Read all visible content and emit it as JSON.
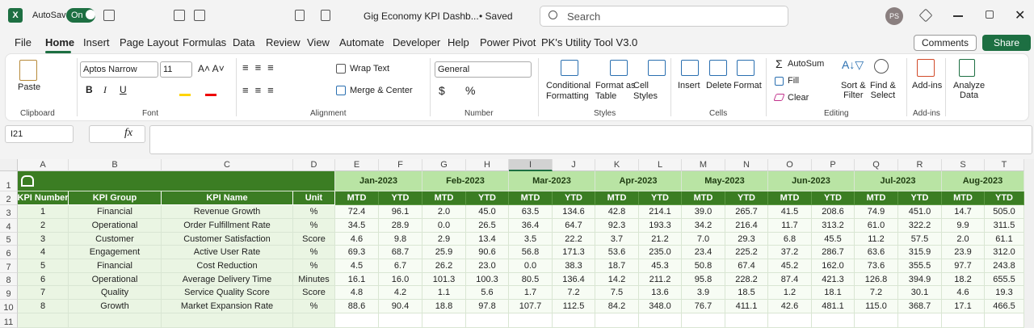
{
  "titlebar": {
    "autosave": "AutoSave",
    "toggle": "On",
    "filename": "Gig Economy KPI Dashb...",
    "status": "• Saved",
    "search": "Search",
    "avatar": "PS"
  },
  "menu": {
    "tabs": [
      "File",
      "Home",
      "Insert",
      "Page Layout",
      "Formulas",
      "Data",
      "Review",
      "View",
      "Automate",
      "Developer",
      "Help",
      "Power Pivot",
      "PK's Utility Tool V3.0"
    ],
    "active": "Home",
    "comments": "Comments",
    "share": "Share"
  },
  "ribbon": {
    "clipboard": {
      "label": "Clipboard",
      "paste": "Paste"
    },
    "font": {
      "label": "Font",
      "name": "Aptos Narrow",
      "size": 11,
      "buttons": [
        "B",
        "I",
        "U"
      ]
    },
    "alignment": {
      "label": "Alignment",
      "wrap": "Wrap Text",
      "merge": "Merge & Center"
    },
    "number": {
      "label": "Number",
      "format": "General",
      "symbols": [
        "$",
        "%"
      ]
    },
    "styles": {
      "label": "Styles",
      "items": [
        [
          "Conditional",
          "Formatting"
        ],
        [
          "Format as",
          "Table"
        ],
        [
          "Cell",
          "Styles"
        ]
      ]
    },
    "cells": {
      "label": "Cells",
      "items": [
        "Insert",
        "Delete",
        "Format"
      ]
    },
    "editing": {
      "label": "Editing",
      "autosum": "AutoSum",
      "fill": "Fill",
      "clear": "Clear",
      "sort": [
        "Sort &",
        "Filter"
      ],
      "find": [
        "Find &",
        "Select"
      ]
    },
    "addins": {
      "label": "Add-ins",
      "item": "Add-ins"
    },
    "analyze": [
      "Analyze",
      "Data"
    ]
  },
  "formula_bar": {
    "name_box": "I21",
    "fx": "fx"
  },
  "sheet": {
    "columns": [
      "A",
      "B",
      "C",
      "D",
      "E",
      "F",
      "G",
      "H",
      "I",
      "J",
      "K",
      "L",
      "M",
      "N",
      "O",
      "P",
      "Q",
      "R",
      "S",
      "T"
    ],
    "rows": [
      1,
      2,
      3,
      4,
      5,
      6,
      7,
      8,
      9,
      10,
      11
    ],
    "selected_column": "I",
    "months": [
      "Jan-2023",
      "Feb-2023",
      "Mar-2023",
      "Apr-2023",
      "May-2023",
      "Jun-2023",
      "Jul-2023",
      "Aug-2023"
    ],
    "sub_headers": [
      "MTD",
      "YTD"
    ],
    "headers": [
      "KPI Number",
      "KPI Group",
      "KPI Name",
      "Unit"
    ],
    "data": [
      [
        1,
        "Financial",
        "Revenue Growth",
        "%",
        "72.4",
        "96.1",
        "2.0",
        "45.0",
        "63.5",
        "134.6",
        "42.8",
        "214.1",
        "39.0",
        "265.7",
        "41.5",
        "208.6",
        "74.9",
        "451.0",
        "14.7",
        "505.0"
      ],
      [
        2,
        "Operational",
        "Order Fulfillment Rate",
        "%",
        "34.5",
        "28.9",
        "0.0",
        "26.5",
        "36.4",
        "64.7",
        "92.3",
        "193.3",
        "34.2",
        "216.4",
        "11.7",
        "313.2",
        "61.0",
        "322.2",
        "9.9",
        "311.5"
      ],
      [
        3,
        "Customer",
        "Customer Satisfaction",
        "Score",
        "4.6",
        "9.8",
        "2.9",
        "13.4",
        "3.5",
        "22.2",
        "3.7",
        "21.2",
        "7.0",
        "29.3",
        "6.8",
        "45.5",
        "11.2",
        "57.5",
        "2.0",
        "61.1"
      ],
      [
        4,
        "Engagement",
        "Active User Rate",
        "%",
        "69.3",
        "68.7",
        "25.9",
        "90.6",
        "56.8",
        "171.3",
        "53.6",
        "235.0",
        "23.4",
        "225.2",
        "37.2",
        "286.7",
        "63.6",
        "315.9",
        "23.9",
        "312.0"
      ],
      [
        5,
        "Financial",
        "Cost Reduction",
        "%",
        "4.5",
        "6.7",
        "26.2",
        "23.0",
        "0.0",
        "38.3",
        "18.7",
        "45.3",
        "50.8",
        "67.4",
        "45.2",
        "162.0",
        "73.6",
        "355.5",
        "97.7",
        "243.8"
      ],
      [
        6,
        "Operational",
        "Average Delivery Time",
        "Minutes",
        "16.1",
        "16.0",
        "101.3",
        "100.3",
        "80.5",
        "136.4",
        "14.2",
        "211.2",
        "95.8",
        "228.2",
        "87.4",
        "421.3",
        "126.8",
        "394.9",
        "18.2",
        "655.5"
      ],
      [
        7,
        "Quality",
        "Service Quality Score",
        "Score",
        "4.8",
        "4.2",
        "1.1",
        "5.6",
        "1.7",
        "7.2",
        "7.5",
        "13.6",
        "3.9",
        "18.5",
        "1.2",
        "18.1",
        "7.2",
        "30.1",
        "4.6",
        "19.3"
      ],
      [
        8,
        "Growth",
        "Market Expansion Rate",
        "%",
        "88.6",
        "90.4",
        "18.8",
        "97.8",
        "107.7",
        "112.5",
        "84.2",
        "348.0",
        "76.7",
        "411.1",
        "42.6",
        "481.1",
        "115.0",
        "368.7",
        "17.1",
        "466.5"
      ]
    ]
  }
}
